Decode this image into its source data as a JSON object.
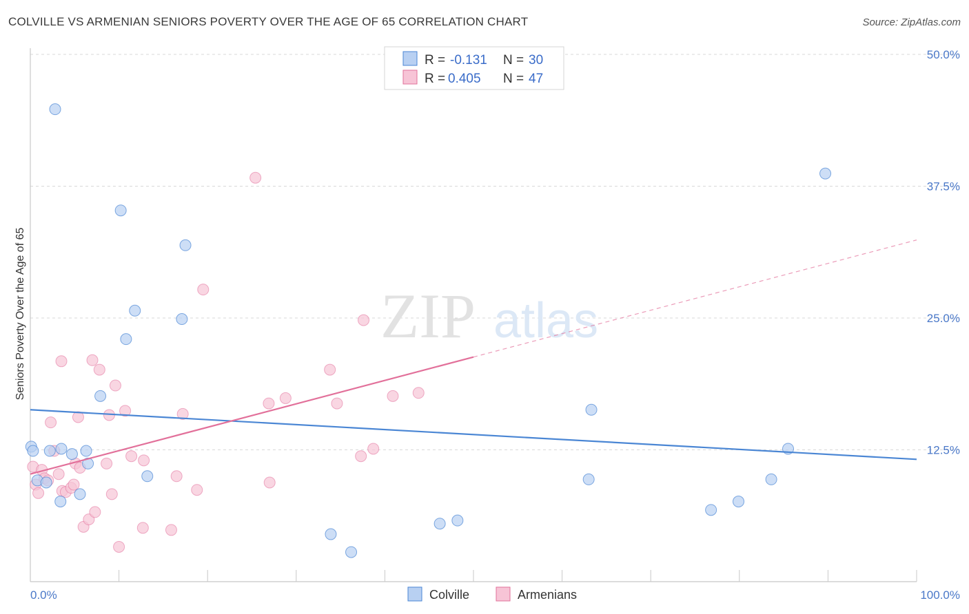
{
  "header": {
    "title": "COLVILLE VS ARMENIAN SENIORS POVERTY OVER THE AGE OF 65 CORRELATION CHART",
    "source": "Source: ZipAtlas.com"
  },
  "watermark": {
    "zip": "ZIP",
    "atlas": "atlas"
  },
  "colors": {
    "colville": "#4a86d4",
    "colville_fill": "#b8d0f2",
    "armenians": "#e2709a",
    "armenians_fill": "#f7c4d6",
    "tick_label": "#4a78c8",
    "grid": "#d8d8d8"
  },
  "legend_top": {
    "rows": [
      {
        "r_label": "R =",
        "r_value": "-0.131",
        "n_label": "N =",
        "n_value": "30"
      },
      {
        "r_label": "R =",
        "r_value": "0.405",
        "n_label": "N =",
        "n_value": "47"
      }
    ]
  },
  "legend_bottom": {
    "items": [
      "Colville",
      "Armenians"
    ]
  },
  "chart_data": {
    "type": "scatter",
    "xlabel": "",
    "ylabel": "Seniors Poverty Over the Age of 65",
    "xlim": [
      0,
      100
    ],
    "ylim": [
      0,
      50
    ],
    "x_tick_labels": [
      "0.0%",
      "100.0%"
    ],
    "y_ticks": [
      12.5,
      25.0,
      37.5,
      50.0
    ],
    "y_tick_labels": [
      "12.5%",
      "25.0%",
      "37.5%",
      "50.0%"
    ],
    "grid": "horizontal dashed",
    "legend": "top-center",
    "series": [
      {
        "name": "Colville",
        "r": -0.131,
        "n": 30,
        "trend": {
          "x0": 0,
          "y0": 16.3,
          "x1": 100,
          "y1": 11.6,
          "dashed_from": null
        },
        "points": [
          [
            0.1,
            12.8
          ],
          [
            0.3,
            12.4
          ],
          [
            2.8,
            44.8
          ],
          [
            0.8,
            9.6
          ],
          [
            1.8,
            9.4
          ],
          [
            2.2,
            12.4
          ],
          [
            3.5,
            12.6
          ],
          [
            3.4,
            7.6
          ],
          [
            4.7,
            12.1
          ],
          [
            5.6,
            8.3
          ],
          [
            6.3,
            12.4
          ],
          [
            6.5,
            11.2
          ],
          [
            7.9,
            17.6
          ],
          [
            10.2,
            35.2
          ],
          [
            10.8,
            23.0
          ],
          [
            11.8,
            25.7
          ],
          [
            13.2,
            10.0
          ],
          [
            17.1,
            24.9
          ],
          [
            17.5,
            31.9
          ],
          [
            33.9,
            4.5
          ],
          [
            36.2,
            2.8
          ],
          [
            46.2,
            5.5
          ],
          [
            48.2,
            5.8
          ],
          [
            63.3,
            16.3
          ],
          [
            63.0,
            9.7
          ],
          [
            76.8,
            6.8
          ],
          [
            79.9,
            7.6
          ],
          [
            89.7,
            38.7
          ],
          [
            83.6,
            9.7
          ],
          [
            85.5,
            12.6
          ]
        ]
      },
      {
        "name": "Armenians",
        "r": 0.405,
        "n": 47,
        "trend": {
          "x0": 0,
          "y0": 10.2,
          "x1": 100,
          "y1": 32.4,
          "dashed_from": 50
        },
        "points": [
          [
            0.3,
            10.9
          ],
          [
            0.6,
            9.2
          ],
          [
            0.9,
            8.4
          ],
          [
            1.3,
            10.6
          ],
          [
            1.6,
            9.8
          ],
          [
            2.0,
            9.6
          ],
          [
            2.3,
            15.1
          ],
          [
            2.7,
            12.4
          ],
          [
            3.2,
            10.2
          ],
          [
            3.6,
            8.6
          ],
          [
            3.5,
            20.9
          ],
          [
            4.0,
            8.5
          ],
          [
            4.6,
            8.9
          ],
          [
            4.9,
            9.2
          ],
          [
            5.1,
            11.2
          ],
          [
            5.4,
            15.6
          ],
          [
            5.6,
            10.8
          ],
          [
            6.0,
            5.2
          ],
          [
            6.6,
            5.9
          ],
          [
            7.0,
            21.0
          ],
          [
            7.3,
            6.6
          ],
          [
            7.8,
            20.1
          ],
          [
            8.6,
            11.2
          ],
          [
            8.9,
            15.8
          ],
          [
            9.2,
            8.3
          ],
          [
            9.6,
            18.6
          ],
          [
            10.0,
            3.3
          ],
          [
            10.7,
            16.2
          ],
          [
            11.4,
            11.9
          ],
          [
            12.8,
            11.5
          ],
          [
            12.7,
            5.1
          ],
          [
            15.9,
            4.9
          ],
          [
            16.5,
            10.0
          ],
          [
            17.2,
            15.9
          ],
          [
            18.8,
            8.7
          ],
          [
            19.5,
            27.7
          ],
          [
            25.4,
            38.3
          ],
          [
            26.9,
            16.9
          ],
          [
            27.0,
            9.4
          ],
          [
            28.8,
            17.4
          ],
          [
            33.8,
            20.1
          ],
          [
            34.6,
            16.9
          ],
          [
            37.3,
            11.9
          ],
          [
            37.6,
            24.8
          ],
          [
            38.7,
            12.6
          ],
          [
            40.9,
            17.6
          ],
          [
            43.8,
            17.9
          ]
        ]
      }
    ]
  }
}
